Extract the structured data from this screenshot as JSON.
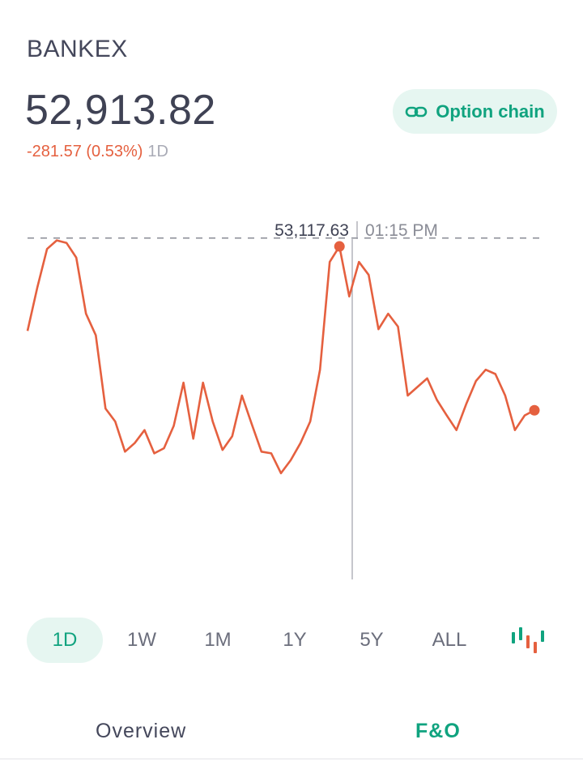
{
  "header": {
    "index_name": "BANKEX",
    "price": "52,913.82",
    "change": "-281.57 (0.53%)",
    "period": "1D"
  },
  "option_chain": {
    "label": "Option chain",
    "icon": "link-icon"
  },
  "colors": {
    "line": "#e5603f",
    "accent": "#10a37f",
    "accent_bg": "#e6f6f1",
    "text": "#44475b"
  },
  "chart_data": {
    "type": "line",
    "series": [
      {
        "values": [
          53010,
          53060,
          53105,
          53115,
          53112,
          53095,
          53030,
          53005,
          52920,
          52905,
          52870,
          52880,
          52895,
          52868,
          52874,
          52900,
          52950,
          52885,
          52950,
          52905,
          52872,
          52888,
          52935,
          52902,
          52870,
          52868,
          52845,
          52860,
          52880,
          52905,
          52965,
          53090,
          53108,
          53050,
          53090,
          53075,
          53012,
          53030,
          53015,
          52935,
          52945,
          52955,
          52930,
          52912,
          52895,
          52925,
          52952,
          52965,
          52960,
          52935,
          52895,
          52912,
          52918
        ]
      }
    ],
    "hover": {
      "value": "53,117.63",
      "time": "01:15 PM"
    },
    "reference_line": 53117.63,
    "ylim": [
      52750,
      53140
    ]
  },
  "range_tabs": [
    "1D",
    "1W",
    "1M",
    "1Y",
    "5Y",
    "ALL"
  ],
  "active_range": "1D",
  "bottom_tabs": {
    "overview": "Overview",
    "fo": "F&O"
  }
}
